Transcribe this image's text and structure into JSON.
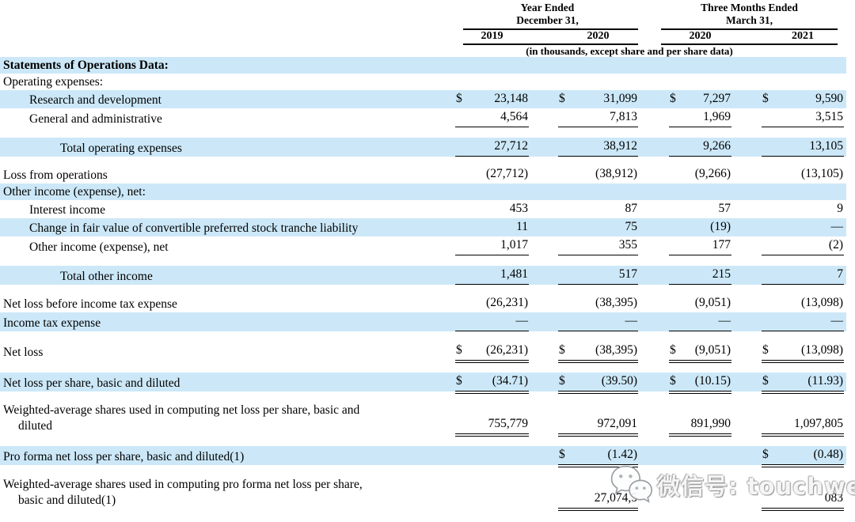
{
  "header": {
    "col_groups": [
      {
        "line1": "Year Ended",
        "line2": "December 31,",
        "years": [
          "2019",
          "2020"
        ]
      },
      {
        "line1": "Three Months Ended",
        "line2": "March 31,",
        "years": [
          "2020",
          "2021"
        ]
      }
    ],
    "units_note": "(in thousands, except share and per share data)"
  },
  "colors": {
    "band": "#cce8f8",
    "rule": "#000000"
  },
  "watermark": {
    "icon": "wechat-logo",
    "text": "微信号: touchweb"
  },
  "table": {
    "rows": [
      {
        "label": "Statements of Operations Data:",
        "bold": true,
        "shaded": true
      },
      {
        "label": "Operating expenses:"
      },
      {
        "label": "Research and development",
        "indent": 1,
        "shaded": true,
        "cells": [
          {
            "d": "$",
            "v": "23,148"
          },
          {
            "d": "$",
            "v": "31,099"
          },
          {
            "d": "$",
            "v": "7,297"
          },
          {
            "d": "$",
            "v": "9,590"
          }
        ]
      },
      {
        "label": "General and administrative",
        "indent": 1,
        "cells": [
          {
            "v": "4,564",
            "u": 1
          },
          {
            "v": "7,813",
            "u": 1
          },
          {
            "v": "1,969",
            "u": 1
          },
          {
            "v": "3,515",
            "u": 1
          }
        ],
        "gap_after": 13
      },
      {
        "label": "Total operating expenses",
        "indent": 2,
        "shaded": true,
        "cells": [
          {
            "v": "27,712",
            "u": 1
          },
          {
            "v": "38,912",
            "u": 1
          },
          {
            "v": "9,266",
            "u": 1
          },
          {
            "v": "13,105",
            "u": 1
          }
        ],
        "gap_after": 11
      },
      {
        "label": "Loss from operations",
        "cells": [
          {
            "v": "(27,712)"
          },
          {
            "v": "(38,912)"
          },
          {
            "v": "(9,266)"
          },
          {
            "v": "(13,105)"
          }
        ]
      },
      {
        "label": "Other income (expense), net:",
        "shaded": true
      },
      {
        "label": "Interest income",
        "indent": 1,
        "cells": [
          {
            "v": "453"
          },
          {
            "v": "87"
          },
          {
            "v": "57"
          },
          {
            "v": "9"
          }
        ]
      },
      {
        "label": "Change in fair value of convertible preferred stock tranche liability",
        "indent": 1,
        "shaded": true,
        "cells": [
          {
            "v": "11"
          },
          {
            "v": "75"
          },
          {
            "v": "(19)"
          },
          {
            "v": "—"
          }
        ]
      },
      {
        "label": "Other income (expense), net",
        "indent": 1,
        "cells": [
          {
            "v": "1,017",
            "u": 1
          },
          {
            "v": "355",
            "u": 1
          },
          {
            "v": "177",
            "u": 1
          },
          {
            "v": "(2)",
            "u": 1
          }
        ],
        "gap_after": 13
      },
      {
        "label": "Total other income",
        "indent": 2,
        "shaded": true,
        "cells": [
          {
            "v": "1,481",
            "u": 1
          },
          {
            "v": "517",
            "u": 1
          },
          {
            "v": "215",
            "u": 1
          },
          {
            "v": "7",
            "u": 1
          }
        ],
        "gap_after": 12
      },
      {
        "label": "Net loss before income tax expense",
        "cells": [
          {
            "v": "(26,231)"
          },
          {
            "v": "(38,395)"
          },
          {
            "v": "(9,051)"
          },
          {
            "v": "(13,098)"
          }
        ]
      },
      {
        "label": "Income tax expense",
        "shaded": true,
        "cells": [
          {
            "v": "—",
            "u": 1
          },
          {
            "v": "—",
            "u": 1
          },
          {
            "v": "—",
            "u": 1
          },
          {
            "v": "—",
            "u": 1
          }
        ],
        "gap_after": 13
      },
      {
        "label": "Net loss",
        "cells": [
          {
            "d": "$",
            "v": "(26,231)",
            "u": 2
          },
          {
            "d": "$",
            "v": "(38,395)",
            "u": 2
          },
          {
            "d": "$",
            "v": "(9,051)",
            "u": 2
          },
          {
            "d": "$",
            "v": "(13,098)",
            "u": 2
          }
        ],
        "gap_after": 15
      },
      {
        "label": "Net loss per share, basic and diluted",
        "shaded": true,
        "cells": [
          {
            "d": "$",
            "v": "(34.71)",
            "u": 2
          },
          {
            "d": "$",
            "v": "(39.50)",
            "u": 2
          },
          {
            "d": "$",
            "v": "(10.15)",
            "u": 2
          },
          {
            "d": "$",
            "v": "(11.93)",
            "u": 2
          }
        ],
        "gap_after": 13
      },
      {
        "label": "Weighted-average shares used in computing net loss per share, basic and",
        "label2": "diluted",
        "cells": [
          {
            "v": "755,779",
            "u": 2
          },
          {
            "v": "972,091",
            "u": 2
          },
          {
            "v": "891,990",
            "u": 2
          },
          {
            "v": "1,097,805",
            "u": 2
          }
        ],
        "gap_after": 15
      },
      {
        "label": "Pro forma net loss per share, basic and diluted(1)",
        "shaded": true,
        "cells": [
          null,
          {
            "d": "$",
            "v": "(1.42)",
            "u": 2
          },
          null,
          {
            "d": "$",
            "v": "(0.48)",
            "u": 2
          }
        ],
        "gap_after": 14
      },
      {
        "label": "Weighted-average shares used in computing pro forma net loss per share,",
        "label2": "basic and diluted(1)",
        "cells": [
          null,
          {
            "v": "27,074,5",
            "u": 2
          },
          null,
          {
            "v": "083",
            "u": 2
          }
        ]
      }
    ]
  }
}
